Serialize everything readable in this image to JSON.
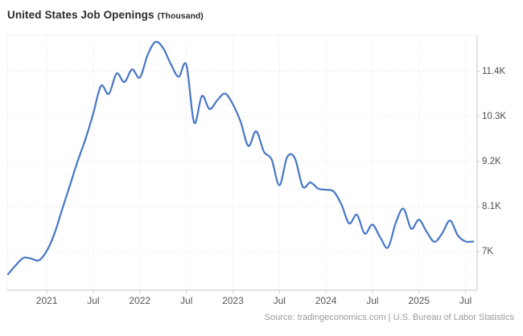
{
  "header": {
    "title": "United States Job Openings",
    "unit_label": "(Thousand)"
  },
  "footer": {
    "source_text": "Source: tradingeconomics.com | U.S. Bureau of Labor Statistics"
  },
  "colors": {
    "line": "#4776c6",
    "grid": "#e7e7e7",
    "spine": "#c9c9c9",
    "plot_border": "#f0f0f0",
    "tick_label": "#4d4d4d",
    "x_label": "#555555",
    "title": "#2b2b2b",
    "source": "#9b9b9b",
    "background": "#ffffff"
  },
  "chart_data": {
    "type": "line",
    "title": "United States Job Openings (Thousand)",
    "series_name": "Job Openings (Thousand)",
    "x": [
      "2020-08",
      "2020-09",
      "2020-10",
      "2020-11",
      "2020-12",
      "2021-01",
      "2021-02",
      "2021-03",
      "2021-04",
      "2021-05",
      "2021-06",
      "2021-07",
      "2021-08",
      "2021-09",
      "2021-10",
      "2021-11",
      "2021-12",
      "2022-01",
      "2022-02",
      "2022-03",
      "2022-04",
      "2022-05",
      "2022-06",
      "2022-07",
      "2022-08",
      "2022-09",
      "2022-10",
      "2022-11",
      "2022-12",
      "2023-01",
      "2023-02",
      "2023-03",
      "2023-04",
      "2023-05",
      "2023-06",
      "2023-07",
      "2023-08",
      "2023-09",
      "2023-10",
      "2023-11",
      "2023-12",
      "2024-01",
      "2024-02",
      "2024-03",
      "2024-04",
      "2024-05",
      "2024-06",
      "2024-07",
      "2024-08",
      "2024-09",
      "2024-10",
      "2024-11",
      "2024-12",
      "2025-01",
      "2025-02",
      "2025-03",
      "2025-04",
      "2025-05",
      "2025-06",
      "2025-07",
      "2025-08"
    ],
    "values": [
      6450,
      6670,
      6850,
      6830,
      6790,
      7020,
      7450,
      8040,
      8630,
      9220,
      9750,
      10380,
      11050,
      10850,
      11350,
      11140,
      11450,
      11250,
      11800,
      12120,
      11970,
      11580,
      11270,
      11560,
      10150,
      10800,
      10480,
      10700,
      10860,
      10600,
      10170,
      9580,
      9940,
      9440,
      9250,
      8620,
      9310,
      9280,
      8590,
      8690,
      8540,
      8510,
      8470,
      8150,
      7690,
      7900,
      7440,
      7660,
      7350,
      7100,
      7700,
      8050,
      7560,
      7780,
      7480,
      7240,
      7450,
      7760,
      7400,
      7250,
      7250
    ],
    "y_ticks": [
      {
        "label": "7K",
        "value": 7000
      },
      {
        "label": "8.1K",
        "value": 8100
      },
      {
        "label": "9.2K",
        "value": 9200
      },
      {
        "label": "10.3K",
        "value": 10300
      },
      {
        "label": "11.4K",
        "value": 11400
      }
    ],
    "x_ticks": [
      {
        "label": "2021",
        "month": "2021-01"
      },
      {
        "label": "Jul",
        "month": "2021-07"
      },
      {
        "label": "2022",
        "month": "2022-01"
      },
      {
        "label": "Jul",
        "month": "2022-07"
      },
      {
        "label": "2023",
        "month": "2023-01"
      },
      {
        "label": "Jul",
        "month": "2023-07"
      },
      {
        "label": "2024",
        "month": "2024-01"
      },
      {
        "label": "Jul",
        "month": "2024-07"
      },
      {
        "label": "2025",
        "month": "2025-01"
      },
      {
        "label": "Jul",
        "month": "2025-07"
      }
    ],
    "ylim": [
      6060,
      12280
    ],
    "xlim_index": [
      -0.1,
      60.5
    ],
    "grid": true,
    "legend": false,
    "y_axis_side": "right"
  }
}
